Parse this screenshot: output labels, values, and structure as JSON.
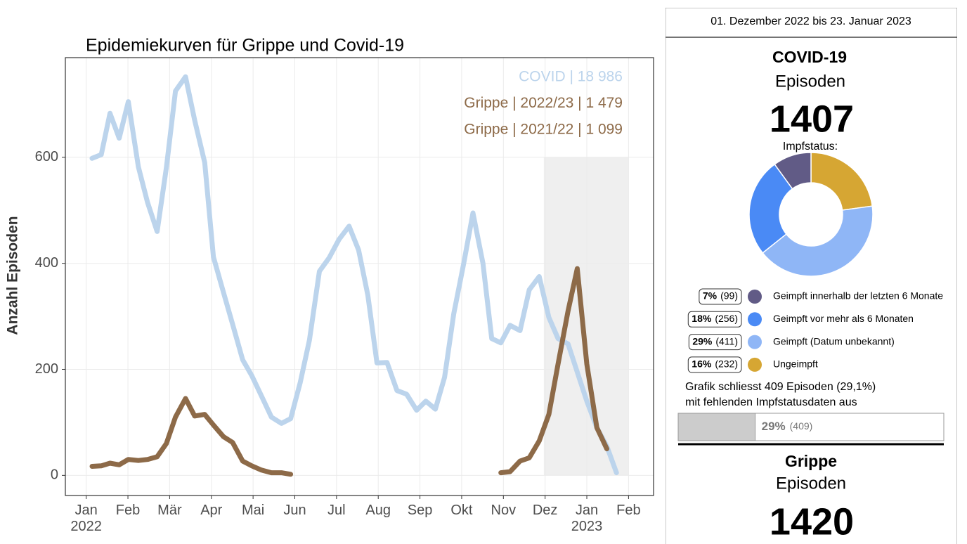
{
  "chart_data": [
    {
      "type": "line",
      "title": "Epidemiekurven für Grippe und Covid-19",
      "y_label": "Anzahl Episoden",
      "xlim": [
        -0.5,
        13.6
      ],
      "ylim": [
        -38,
        788
      ],
      "xticks": [
        {
          "value": 0,
          "label": "Jan\n2022"
        },
        {
          "value": 1,
          "label": "Feb"
        },
        {
          "value": 2,
          "label": "Mär"
        },
        {
          "value": 3,
          "label": "Apr"
        },
        {
          "value": 4,
          "label": "Mai"
        },
        {
          "value": 5,
          "label": "Jun"
        },
        {
          "value": 6,
          "label": "Jul"
        },
        {
          "value": 7,
          "label": "Aug"
        },
        {
          "value": 8,
          "label": "Sep"
        },
        {
          "value": 9,
          "label": "Okt"
        },
        {
          "value": 10,
          "label": "Nov"
        },
        {
          "value": 11,
          "label": "Dez"
        },
        {
          "value": 12,
          "label": "Jan\n2023"
        },
        {
          "value": 13,
          "label": "Feb"
        }
      ],
      "yticks": [
        0,
        200,
        400,
        600
      ],
      "grid": true,
      "shaded_range": {
        "x": [
          10.97,
          13
        ],
        "y": [
          0,
          600
        ],
        "color": "#efefef"
      },
      "series": [
        {
          "name": "COVID | 18 986",
          "color": "#bcd4ec",
          "x": [
            0.14,
            0.36,
            0.57,
            0.79,
            1.01,
            1.25,
            1.47,
            1.7,
            1.92,
            2.14,
            2.38,
            2.6,
            2.84,
            3.05,
            3.29,
            3.51,
            3.75,
            3.97,
            4.2,
            4.44,
            4.68,
            4.9,
            5.13,
            5.35,
            5.59,
            5.82,
            6.06,
            6.3,
            6.53,
            6.75,
            6.97,
            7.21,
            7.45,
            7.68,
            7.92,
            8.14,
            8.37,
            8.59,
            8.81,
            9.05,
            9.27,
            9.51,
            9.72,
            9.94,
            10.16,
            10.4,
            10.62,
            10.86,
            11.09,
            11.31,
            11.55,
            11.77,
            12.0,
            12.24,
            12.48,
            12.71
          ],
          "values": [
            598,
            605,
            683,
            636,
            705,
            582,
            515,
            460,
            580,
            725,
            752,
            670,
            590,
            412,
            345,
            285,
            218,
            188,
            150,
            110,
            98,
            107,
            175,
            255,
            385,
            410,
            445,
            470,
            425,
            340,
            212,
            213,
            160,
            153,
            123,
            140,
            125,
            185,
            305,
            400,
            495,
            400,
            258,
            250,
            283,
            273,
            350,
            375,
            298,
            258,
            248,
            195,
            140,
            90,
            55,
            5
          ]
        },
        {
          "name": "Grippe | 2022/23 | 1 479",
          "color": "#8d6a48",
          "x": [
            9.94,
            10.16,
            10.4,
            10.62,
            10.86,
            11.09,
            11.31,
            11.55,
            11.77,
            12.0,
            12.24,
            12.48
          ],
          "values": [
            5,
            7,
            27,
            33,
            65,
            115,
            210,
            310,
            390,
            210,
            90,
            50
          ]
        },
        {
          "name": "Grippe | 2021/22 | 1 099",
          "color": "#8d6a48",
          "x": [
            0.14,
            0.36,
            0.57,
            0.79,
            1.01,
            1.25,
            1.47,
            1.7,
            1.92,
            2.14,
            2.38,
            2.6,
            2.84,
            3.05,
            3.29,
            3.51,
            3.75,
            3.97,
            4.2,
            4.44,
            4.68,
            4.9
          ],
          "values": [
            17,
            18,
            23,
            20,
            30,
            28,
            30,
            35,
            60,
            110,
            145,
            112,
            115,
            95,
            73,
            62,
            27,
            18,
            10,
            5,
            5,
            2
          ]
        }
      ]
    },
    {
      "type": "pie",
      "title": "Impfstatus:",
      "categories": [
        "Geimpft innerhalb der letzten 6 Monate",
        "Geimpft vor mehr als 6 Monaten",
        "Geimpft (Datum unbekannt)",
        "Ungeimpft"
      ],
      "values": [
        7,
        18,
        29,
        16
      ],
      "value_labels": [
        "7%",
        "18%",
        "29%",
        "16%"
      ],
      "count_labels": [
        "(99)",
        "(256)",
        "(411)",
        "(232)"
      ],
      "colors": [
        "#615b86",
        "#4a8af5",
        "#8fb6f6",
        "#d6a633"
      ]
    },
    {
      "type": "progress",
      "values": [
        29
      ],
      "value_labels": [
        "29%"
      ],
      "count_labels": [
        "(409)"
      ],
      "xlim": [
        0,
        100
      ],
      "color": "#cccccc"
    }
  ],
  "panel": {
    "date_range": "01. Dezember 2022 bis 23. Januar 2023",
    "covid": {
      "title": "COVID-19",
      "subtitle": "Episoden",
      "total": 1407,
      "note": [
        "Grafik schliesst 409 Episoden (29,1%)",
        "mit fehlenden Impfstatusdaten aus"
      ]
    },
    "grippe": {
      "title": "Grippe",
      "subtitle": "Episoden",
      "total": 1420
    }
  }
}
